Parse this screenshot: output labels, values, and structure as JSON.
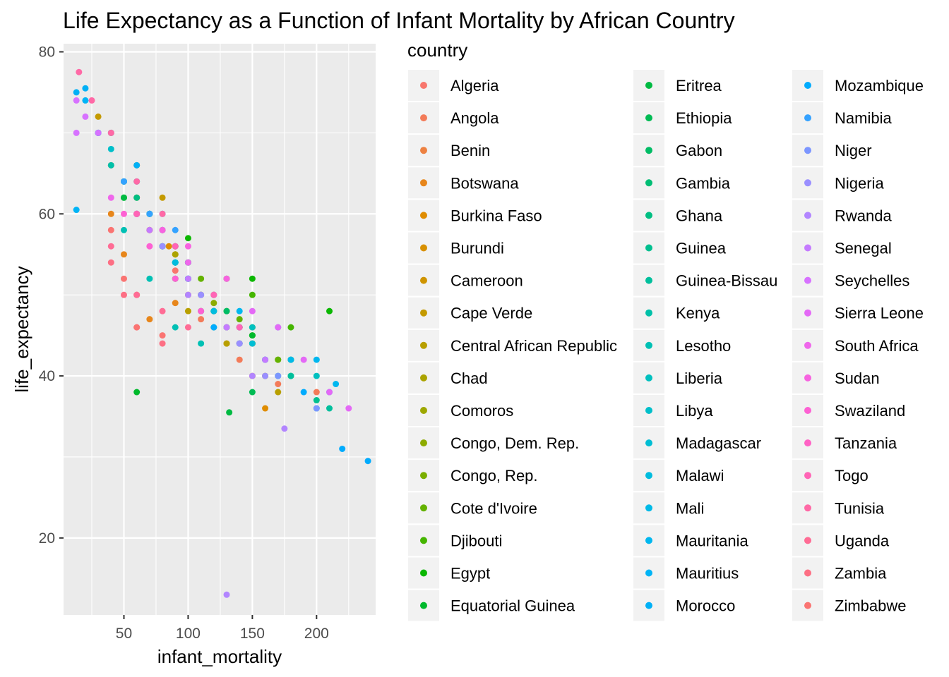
{
  "chart_data": {
    "type": "scatter",
    "title": "Life Expectancy as a Function of Infant Mortality by African Country",
    "xlabel": "infant_mortality",
    "ylabel": "life_expectancy",
    "xlim": [
      3,
      246
    ],
    "ylim": [
      10.5,
      81
    ],
    "x_ticks": [
      50,
      100,
      150,
      200
    ],
    "y_ticks": [
      20,
      40,
      60,
      80
    ],
    "grid": true,
    "legend": {
      "title": "country",
      "position": "right",
      "columns": 3
    },
    "series": [
      {
        "name": "Algeria",
        "color": "#F8766D",
        "points": [
          [
            40,
            66
          ],
          [
            60,
            60
          ],
          [
            90,
            53
          ],
          [
            120,
            48
          ],
          [
            150,
            44
          ]
        ]
      },
      {
        "name": "Angola",
        "color": "#F37B59",
        "points": [
          [
            110,
            47
          ],
          [
            140,
            42
          ],
          [
            170,
            39
          ],
          [
            200,
            38
          ]
        ]
      },
      {
        "name": "Benin",
        "color": "#ED8141",
        "points": [
          [
            70,
            58
          ],
          [
            100,
            52
          ],
          [
            130,
            46
          ],
          [
            160,
            42
          ]
        ]
      },
      {
        "name": "Botswana",
        "color": "#E7861B",
        "points": [
          [
            40,
            60
          ],
          [
            50,
            55
          ],
          [
            60,
            50
          ],
          [
            70,
            47
          ],
          [
            90,
            49
          ]
        ]
      },
      {
        "name": "Burkina Faso",
        "color": "#DF8C00",
        "points": [
          [
            85,
            56
          ],
          [
            110,
            50
          ],
          [
            140,
            44
          ],
          [
            160,
            36
          ]
        ]
      },
      {
        "name": "Burundi",
        "color": "#D89000",
        "points": [
          [
            70,
            58
          ],
          [
            100,
            50
          ],
          [
            130,
            44
          ],
          [
            150,
            40
          ]
        ]
      },
      {
        "name": "Cameroon",
        "color": "#CF9400",
        "points": [
          [
            60,
            62
          ],
          [
            90,
            55
          ],
          [
            120,
            48
          ],
          [
            150,
            44
          ]
        ]
      },
      {
        "name": "Cape Verde",
        "color": "#C49A00",
        "points": [
          [
            30,
            72
          ],
          [
            40,
            70
          ],
          [
            60,
            66
          ],
          [
            80,
            62
          ]
        ]
      },
      {
        "name": "Central African Republic",
        "color": "#B89F00",
        "points": [
          [
            100,
            48
          ],
          [
            130,
            44
          ],
          [
            160,
            40
          ],
          [
            170,
            38
          ]
        ]
      },
      {
        "name": "Chad",
        "color": "#ABA300",
        "points": [
          [
            90,
            55
          ],
          [
            120,
            50
          ],
          [
            150,
            46
          ],
          [
            180,
            42
          ]
        ]
      },
      {
        "name": "Comoros",
        "color": "#9DA700",
        "points": [
          [
            60,
            60
          ],
          [
            80,
            56
          ],
          [
            110,
            50
          ],
          [
            140,
            46
          ]
        ]
      },
      {
        "name": "Congo, Dem. Rep.",
        "color": "#8DAB00",
        "points": [
          [
            90,
            54
          ],
          [
            120,
            49
          ],
          [
            150,
            45
          ],
          [
            170,
            42
          ]
        ]
      },
      {
        "name": "Congo, Rep.",
        "color": "#7AAE00",
        "points": [
          [
            50,
            64
          ],
          [
            70,
            60
          ],
          [
            100,
            54
          ],
          [
            130,
            48
          ]
        ]
      },
      {
        "name": "Cote d'Ivoire",
        "color": "#64B200",
        "points": [
          [
            80,
            58
          ],
          [
            110,
            52
          ],
          [
            140,
            47
          ],
          [
            170,
            42
          ]
        ]
      },
      {
        "name": "Djibouti",
        "color": "#45B500",
        "points": [
          [
            60,
            60
          ],
          [
            90,
            56
          ],
          [
            130,
            52
          ],
          [
            150,
            50
          ],
          [
            180,
            46
          ]
        ]
      },
      {
        "name": "Egypt",
        "color": "#0BB702",
        "points": [
          [
            30,
            70
          ],
          [
            50,
            62
          ],
          [
            70,
            60
          ],
          [
            100,
            57
          ],
          [
            150,
            52
          ],
          [
            210,
            48
          ]
        ]
      },
      {
        "name": "Equatorial Guinea",
        "color": "#00B92C",
        "points": [
          [
            60,
            38
          ],
          [
            90,
            52
          ],
          [
            120,
            48
          ],
          [
            150,
            45
          ]
        ]
      },
      {
        "name": "Eritrea",
        "color": "#00BA42",
        "points": [
          [
            50,
            62
          ],
          [
            80,
            56
          ],
          [
            110,
            48
          ],
          [
            132,
            35.5
          ]
        ]
      },
      {
        "name": "Ethiopia",
        "color": "#00BB54",
        "points": [
          [
            60,
            60
          ],
          [
            90,
            54
          ],
          [
            120,
            46
          ],
          [
            150,
            38
          ]
        ]
      },
      {
        "name": "Gabon",
        "color": "#00BC65",
        "points": [
          [
            50,
            64
          ],
          [
            70,
            60
          ],
          [
            100,
            54
          ],
          [
            130,
            48
          ]
        ]
      },
      {
        "name": "Gambia",
        "color": "#00BD74",
        "points": [
          [
            60,
            60
          ],
          [
            100,
            52
          ],
          [
            140,
            44
          ],
          [
            180,
            40
          ]
        ]
      },
      {
        "name": "Ghana",
        "color": "#00BE82",
        "points": [
          [
            60,
            62
          ],
          [
            90,
            56
          ],
          [
            120,
            50
          ],
          [
            140,
            46
          ]
        ]
      },
      {
        "name": "Guinea",
        "color": "#00BF8F",
        "points": [
          [
            90,
            54
          ],
          [
            130,
            46
          ],
          [
            170,
            40
          ],
          [
            200,
            37
          ]
        ]
      },
      {
        "name": "Guinea-Bissau",
        "color": "#00BF9C",
        "points": [
          [
            100,
            52
          ],
          [
            140,
            46
          ],
          [
            180,
            40
          ],
          [
            210,
            36
          ]
        ]
      },
      {
        "name": "Kenya",
        "color": "#00C0A8",
        "points": [
          [
            40,
            66
          ],
          [
            60,
            60
          ],
          [
            80,
            56
          ],
          [
            100,
            52
          ]
        ]
      },
      {
        "name": "Lesotho",
        "color": "#00C0B4",
        "points": [
          [
            50,
            58
          ],
          [
            70,
            52
          ],
          [
            90,
            46
          ],
          [
            110,
            44
          ]
        ]
      },
      {
        "name": "Liberia",
        "color": "#00C0BF",
        "points": [
          [
            100,
            52
          ],
          [
            150,
            46
          ],
          [
            180,
            42
          ],
          [
            200,
            40
          ]
        ]
      },
      {
        "name": "Libya",
        "color": "#00BFCA",
        "points": [
          [
            30,
            70
          ],
          [
            40,
            68
          ],
          [
            60,
            64
          ],
          [
            80,
            58
          ],
          [
            100,
            54
          ]
        ]
      },
      {
        "name": "Madagascar",
        "color": "#00BED4",
        "points": [
          [
            60,
            60
          ],
          [
            90,
            54
          ],
          [
            120,
            48
          ],
          [
            150,
            44
          ]
        ]
      },
      {
        "name": "Malawi",
        "color": "#00BCDE",
        "points": [
          [
            90,
            54
          ],
          [
            120,
            48
          ],
          [
            160,
            42
          ],
          [
            200,
            36
          ]
        ]
      },
      {
        "name": "Mali",
        "color": "#00BAE7",
        "points": [
          [
            100,
            52
          ],
          [
            140,
            46
          ],
          [
            180,
            42
          ],
          [
            210,
            38
          ]
        ]
      },
      {
        "name": "Mauritania",
        "color": "#00B7EF",
        "points": [
          [
            140,
            48
          ],
          [
            170,
            46
          ],
          [
            200,
            42
          ],
          [
            215,
            39
          ]
        ]
      },
      {
        "name": "Mauritius",
        "color": "#00B4F6",
        "points": [
          [
            13,
            60.5
          ],
          [
            20,
            74
          ],
          [
            30,
            70
          ],
          [
            50,
            64
          ],
          [
            70,
            60
          ]
        ]
      },
      {
        "name": "Morocco",
        "color": "#00B0F6",
        "points": [
          [
            13,
            75
          ],
          [
            20,
            75.5
          ],
          [
            40,
            70
          ],
          [
            60,
            66
          ],
          [
            80,
            60
          ]
        ]
      },
      {
        "name": "Mozambique",
        "color": "#00ABFD",
        "points": [
          [
            120,
            46
          ],
          [
            160,
            42
          ],
          [
            190,
            38
          ],
          [
            220,
            31
          ],
          [
            240,
            29.5
          ]
        ]
      },
      {
        "name": "Namibia",
        "color": "#35A2FF",
        "points": [
          [
            30,
            70
          ],
          [
            50,
            64
          ],
          [
            70,
            60
          ],
          [
            90,
            58
          ]
        ]
      },
      {
        "name": "Niger",
        "color": "#7C96FF",
        "points": [
          [
            110,
            50
          ],
          [
            140,
            44
          ],
          [
            170,
            40
          ],
          [
            200,
            36
          ]
        ]
      },
      {
        "name": "Nigeria",
        "color": "#9A8FFF",
        "points": [
          [
            80,
            56
          ],
          [
            110,
            50
          ],
          [
            140,
            44
          ],
          [
            160,
            40
          ]
        ]
      },
      {
        "name": "Rwanda",
        "color": "#B285FF",
        "points": [
          [
            60,
            60
          ],
          [
            100,
            50
          ],
          [
            130,
            13
          ],
          [
            150,
            40
          ],
          [
            175,
            33.5
          ]
        ]
      },
      {
        "name": "Senegal",
        "color": "#C57BFF",
        "points": [
          [
            70,
            58
          ],
          [
            100,
            52
          ],
          [
            130,
            46
          ],
          [
            160,
            42
          ]
        ]
      },
      {
        "name": "Seychelles",
        "color": "#D772FF",
        "points": [
          [
            13,
            70
          ],
          [
            13,
            74
          ],
          [
            20,
            72
          ],
          [
            30,
            70
          ]
        ]
      },
      {
        "name": "Sierra Leone",
        "color": "#E469F6",
        "points": [
          [
            150,
            48
          ],
          [
            170,
            46
          ],
          [
            190,
            42
          ],
          [
            210,
            38
          ],
          [
            225,
            36
          ]
        ]
      },
      {
        "name": "South Africa",
        "color": "#EF67EB",
        "points": [
          [
            40,
            62
          ],
          [
            60,
            60
          ],
          [
            80,
            58
          ],
          [
            100,
            54
          ]
        ]
      },
      {
        "name": "Sudan",
        "color": "#F763E0",
        "points": [
          [
            60,
            60
          ],
          [
            80,
            58
          ],
          [
            100,
            56
          ],
          [
            130,
            52
          ]
        ]
      },
      {
        "name": "Swaziland",
        "color": "#FD61D3",
        "points": [
          [
            50,
            60
          ],
          [
            70,
            56
          ],
          [
            90,
            52
          ],
          [
            110,
            48
          ]
        ]
      },
      {
        "name": "Tanzania",
        "color": "#FF62C5",
        "points": [
          [
            60,
            60
          ],
          [
            90,
            56
          ],
          [
            120,
            50
          ],
          [
            140,
            46
          ]
        ]
      },
      {
        "name": "Togo",
        "color": "#FF65B6",
        "points": [
          [
            60,
            60
          ],
          [
            90,
            56
          ],
          [
            120,
            50
          ],
          [
            140,
            46
          ]
        ]
      },
      {
        "name": "Tunisia",
        "color": "#FF69A6",
        "points": [
          [
            15,
            77.5
          ],
          [
            25,
            74
          ],
          [
            40,
            70
          ],
          [
            60,
            64
          ],
          [
            80,
            60
          ]
        ]
      },
      {
        "name": "Uganda",
        "color": "#FF6C95",
        "points": [
          [
            40,
            56
          ],
          [
            60,
            50
          ],
          [
            80,
            48
          ],
          [
            100,
            46
          ]
        ]
      },
      {
        "name": "Zambia",
        "color": "#FD6F84",
        "points": [
          [
            40,
            54
          ],
          [
            50,
            50
          ],
          [
            60,
            46
          ],
          [
            80,
            44
          ]
        ]
      },
      {
        "name": "Zimbabwe",
        "color": "#FA7472",
        "points": [
          [
            40,
            58
          ],
          [
            50,
            52
          ],
          [
            60,
            46
          ],
          [
            80,
            45
          ]
        ]
      }
    ]
  }
}
